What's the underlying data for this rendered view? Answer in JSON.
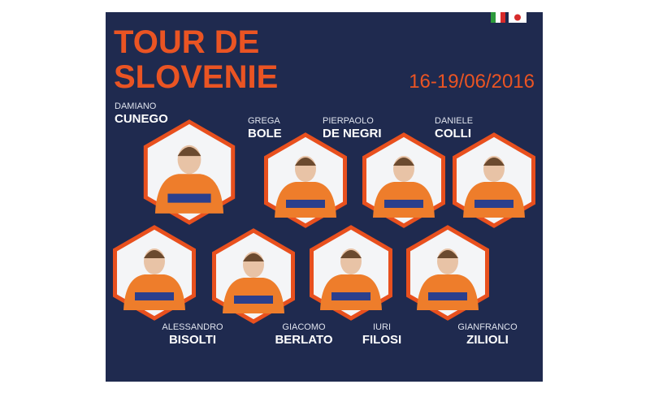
{
  "header": {
    "title_lines": [
      "TOUR DE",
      "SLOVENIE"
    ],
    "date": "16-19/06/2016"
  },
  "riders": [
    {
      "first": "DAMIANO",
      "last": "CUNEGO"
    },
    {
      "first": "GREGA",
      "last": "BOLE"
    },
    {
      "first": "PIERPAOLO",
      "last": "DE NEGRI"
    },
    {
      "first": "DANIELE",
      "last": "COLLI"
    },
    {
      "first": "ALESSANDRO",
      "last": "BISOLTI"
    },
    {
      "first": "GIACOMO",
      "last": "BERLATO"
    },
    {
      "first": "IURI",
      "last": "FILOSI"
    },
    {
      "first": "GIANFRANCO",
      "last": "ZILIOLI"
    }
  ]
}
